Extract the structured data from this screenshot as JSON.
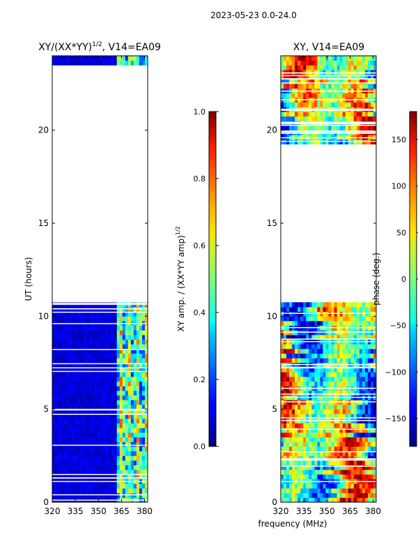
{
  "suptitle": "2023-05-23 0.0-24.0",
  "xlabel": "frequency (MHz)",
  "chart_data": [
    {
      "type": "heatmap",
      "title": "XY/(XX*YY)",
      "title_exp": "1/2",
      "title_suffix": ", V14=EA09",
      "ylabel": "UT (hours)",
      "xlim": [
        320,
        382
      ],
      "ylim": [
        0,
        24
      ],
      "xticks": [
        320,
        335,
        350,
        365,
        380
      ],
      "yticks": [
        0,
        5,
        10,
        15,
        20
      ],
      "colormap": "jet",
      "gaps_hours": [
        [
          19.35,
          23.4
        ],
        [
          10.78,
          19.35
        ]
      ],
      "colorbar": {
        "label": "XY amp. / (XX*YY amp)",
        "label_exp": "1/2",
        "range": [
          0.0,
          1.0
        ],
        "ticks": [
          "0.0",
          "0.2",
          "0.4",
          "0.6",
          "0.8",
          "1.0"
        ]
      }
    },
    {
      "type": "heatmap",
      "title": "XY, V14=EA09",
      "ylabel": "",
      "xlim": [
        320,
        382
      ],
      "ylim": [
        0,
        24
      ],
      "xticks": [
        320,
        335,
        350,
        365,
        380
      ],
      "yticks": [
        0,
        5,
        10,
        15,
        20
      ],
      "colormap": "jet",
      "gaps_hours": [
        [
          10.78,
          19.35
        ]
      ],
      "colorbar": {
        "label": "phase (deg.)",
        "range": [
          -180,
          180
        ],
        "ticks": [
          "-150",
          "-100",
          "-50",
          "0",
          "50",
          "100",
          "150"
        ]
      }
    }
  ]
}
